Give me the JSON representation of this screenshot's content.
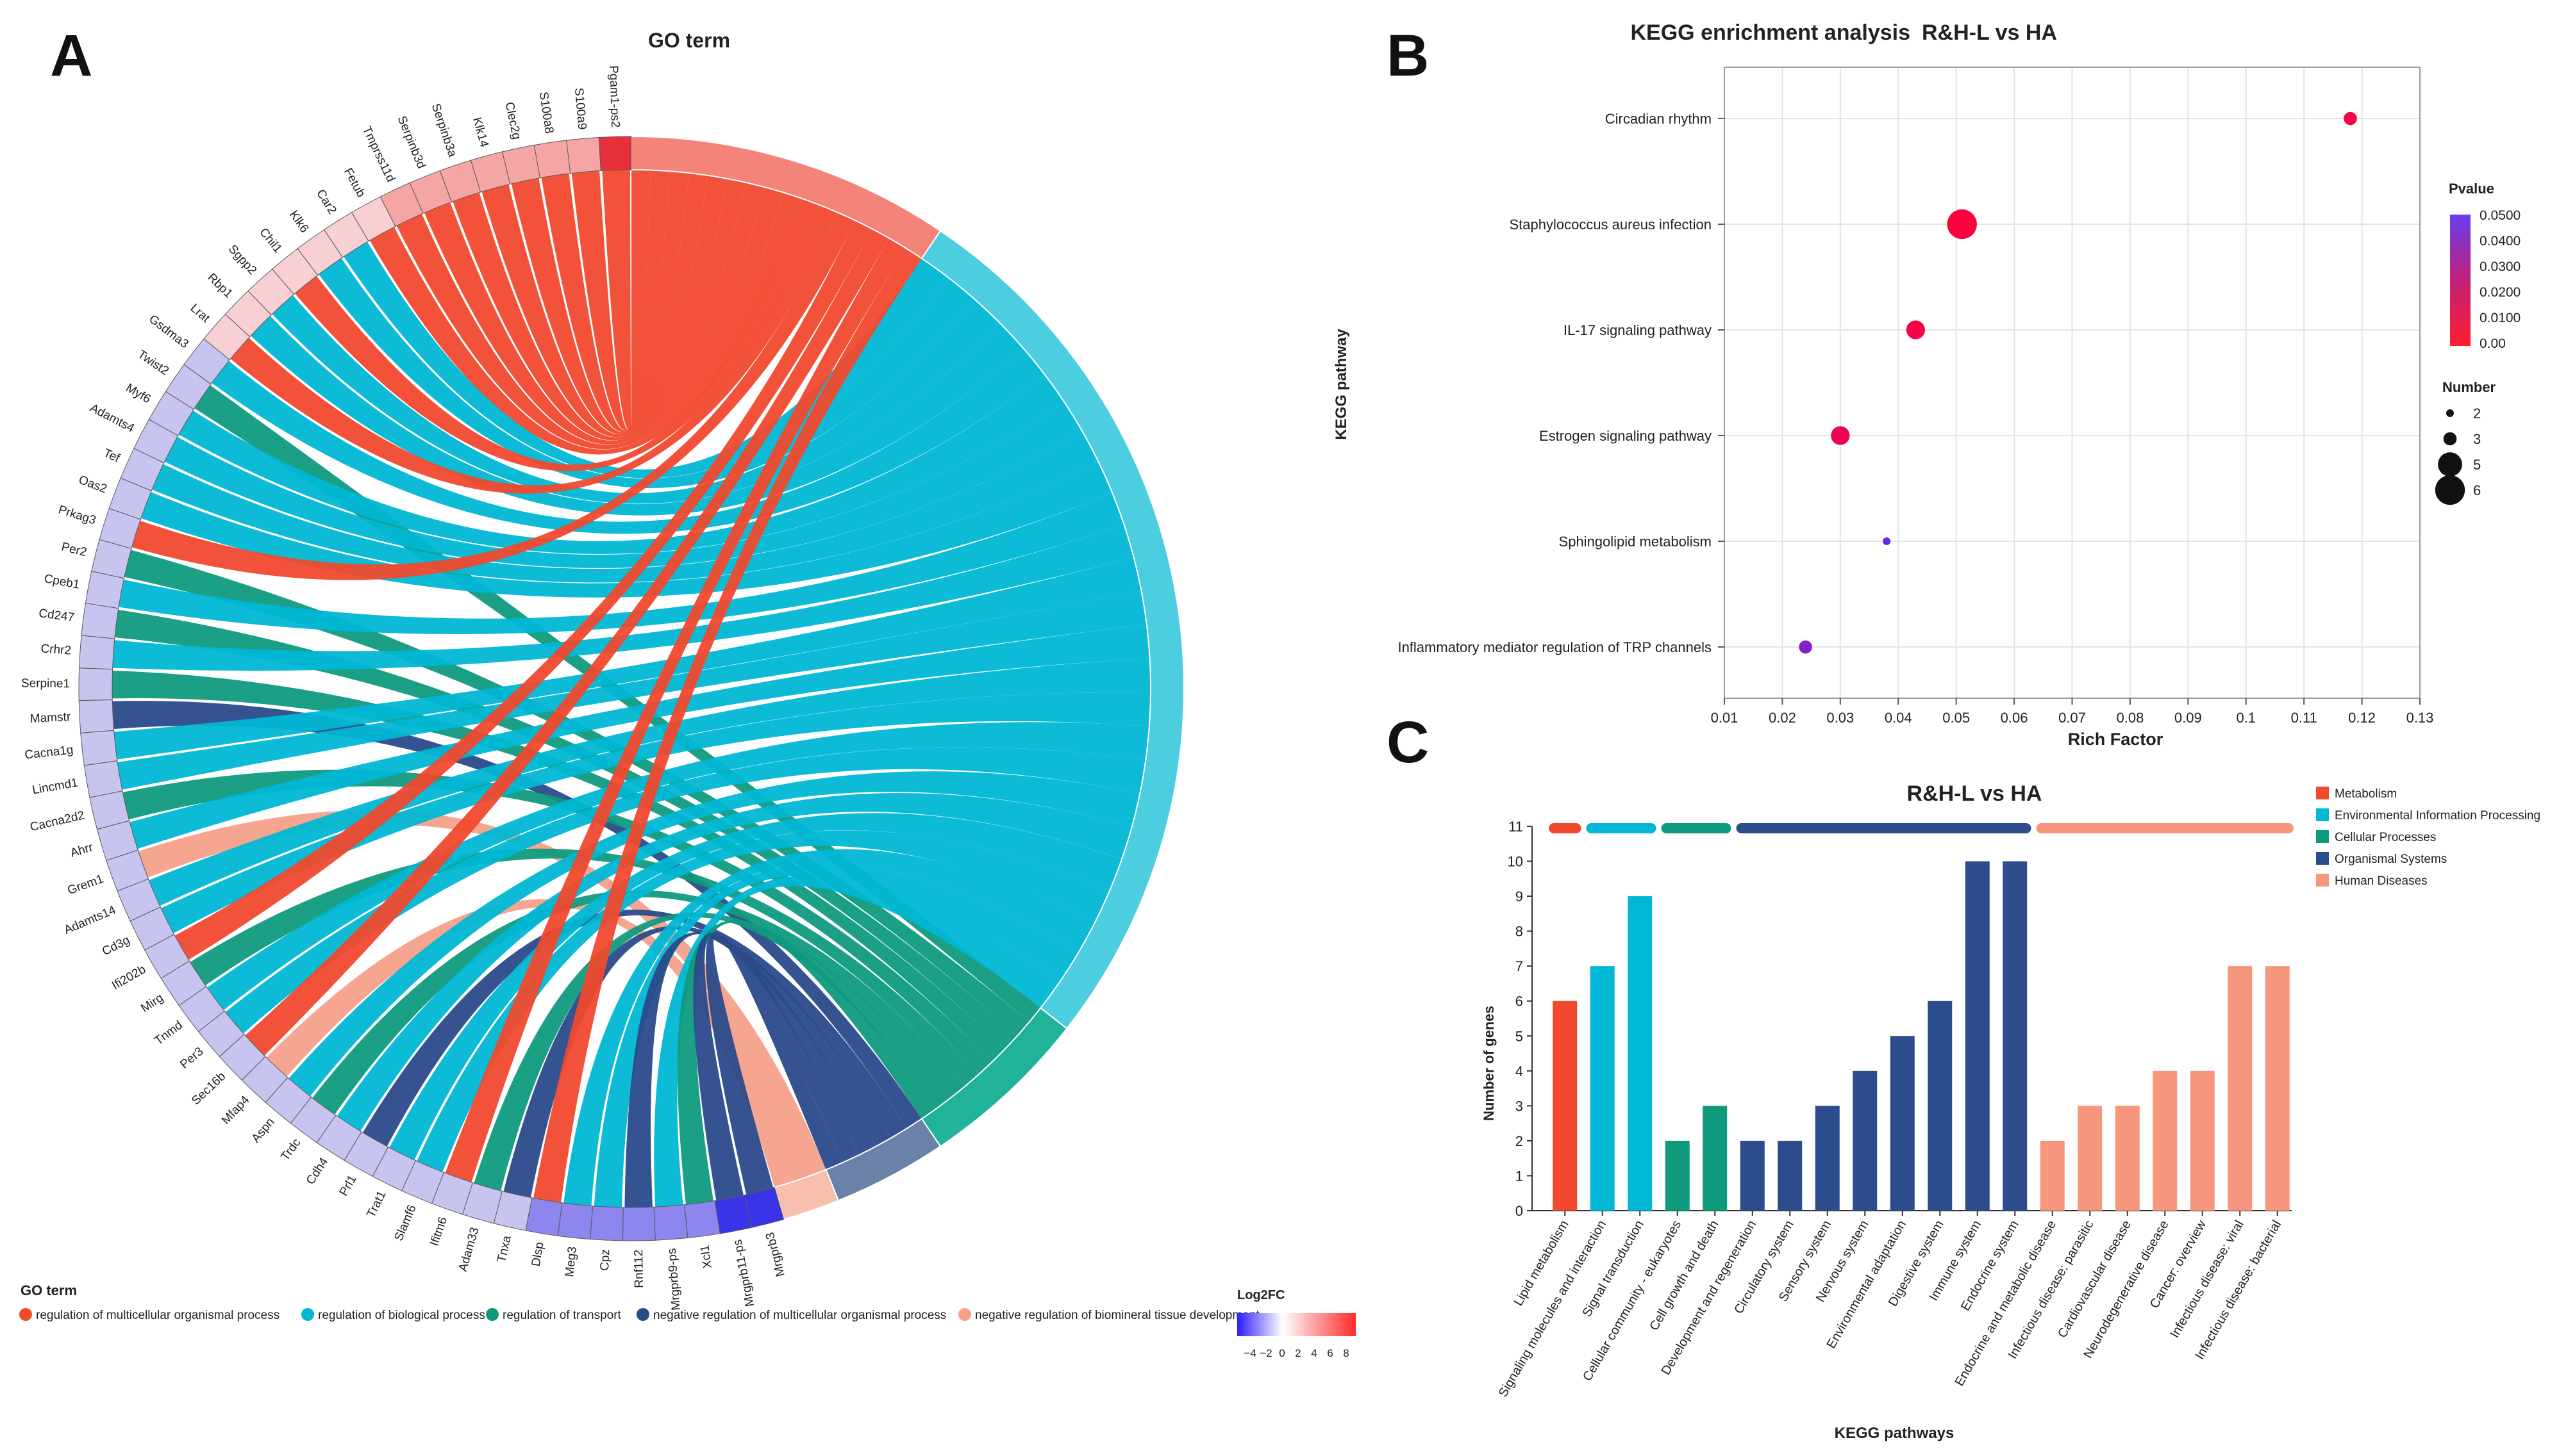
{
  "panel_labels": {
    "a": "A",
    "b": "B",
    "c": "C"
  },
  "colors": {
    "metabolism": "#f0492e",
    "environmental": "#00b7d4",
    "cellular": "#0f9a7e",
    "organismal": "#2c4c8b",
    "human": "#f6977d",
    "go_red": "#f0492e",
    "go_cyan": "#00b7d4",
    "go_green": "#0f9a7e",
    "go_navy": "#2a4a8a",
    "go_salmon": "#f6a08a"
  },
  "chart_data": [
    {
      "type": "chord",
      "title": "GO term",
      "genes": [
        "Pgam1-ps2",
        "S100a9",
        "S100a8",
        "Clec2g",
        "Klk14",
        "Serpinb3a",
        "Serpinb3d",
        "Tmprss11d",
        "Fetub",
        "Car2",
        "Klk6",
        "Chil1",
        "Sgpp2",
        "Rbp1",
        "Lrat",
        "Gsdma3",
        "Twist2",
        "Myf6",
        "Adamts4",
        "Tef",
        "Oas2",
        "Prkag3",
        "Per2",
        "Cpeb1",
        "Cd247",
        "Crhr2",
        "Serpine1",
        "Mamstr",
        "Cacna1g",
        "Lincmd1",
        "Cacna2d2",
        "Ahrr",
        "Grem1",
        "Adamts14",
        "Cd3g",
        "Ifi202b",
        "Mirg",
        "Tnmd",
        "Per3",
        "Sec16b",
        "Mfap4",
        "Aspn",
        "Trdc",
        "Cdh4",
        "Prl1",
        "Trat1",
        "Slamf6",
        "Ifitm6",
        "Adam33",
        "Tnxa",
        "Dlsp",
        "Meg3",
        "Cpz",
        "Rnf112",
        "Mrgprb9-ps",
        "Xcl1",
        "Mrgprb11-ps",
        "Mrgprb3"
      ],
      "legend_title": "GO term",
      "terms": [
        {
          "name": "regulation of multicellular organismal process",
          "color": "#f0492e"
        },
        {
          "name": "regulation of biological process",
          "color": "#00b7d4"
        },
        {
          "name": "regulation of transport",
          "color": "#0f9a7e"
        },
        {
          "name": "negative regulation of multicellular organismal process",
          "color": "#2a4a8a"
        },
        {
          "name": "negative regulation of biomineral tissue development",
          "color": "#f6a08a"
        }
      ],
      "colorbar": {
        "title": "Log2FC",
        "ticks": [
          "−4",
          "−2",
          "0",
          "2",
          "4",
          "6",
          "8"
        ],
        "range": [
          -5,
          8
        ]
      }
    },
    {
      "type": "scatter",
      "title": "KEGG enrichment analysis",
      "subtitle": "R&H-L vs HA",
      "xlabel": "Rich Factor",
      "ylabel": "KEGG pathway",
      "xlim": [
        0.01,
        0.13
      ],
      "xticks": [
        "0.01",
        "0.02",
        "0.03",
        "0.04",
        "0.05",
        "0.06",
        "0.07",
        "0.08",
        "0.09",
        "0.1",
        "0.11",
        "0.12",
        "0.13"
      ],
      "categories": [
        "Circadian rhythm",
        "Staphylococcus aureus infection",
        "IL-17 signaling pathway",
        "Estrogen signaling pathway",
        "Sphingolipid metabolism",
        "Inflammatory mediator regulation of TRP channels"
      ],
      "x": [
        0.118,
        0.051,
        0.043,
        0.03,
        0.038,
        0.024
      ],
      "number": [
        3,
        6,
        4,
        4,
        2,
        3
      ],
      "pvalue": [
        0.002,
        0.001,
        0.003,
        0.006,
        0.048,
        0.04
      ],
      "legend_pvalue": {
        "title": "Pvalue",
        "ticks": [
          "0.0500",
          "0.0400",
          "0.0300",
          "0.0200",
          "0.0100",
          "0.00"
        ]
      },
      "legend_number": {
        "title": "Number",
        "values": [
          "2",
          "3",
          "5",
          "6"
        ]
      }
    },
    {
      "type": "bar",
      "title": "R&H-L vs HA",
      "xlabel": "KEGG pathways",
      "ylabel": "Number of genes",
      "ylim": [
        0,
        11
      ],
      "yticks": [
        "0",
        "1",
        "2",
        "3",
        "4",
        "5",
        "6",
        "7",
        "8",
        "9",
        "10",
        "11"
      ],
      "categories": [
        "Lipid metabolism",
        "Signaling molecules and interaction",
        "Signal transduction",
        "Cellular community - eukaryotes",
        "Cell growth and death",
        "Development and regeneration",
        "Circulatory system",
        "Sensory system",
        "Nervous system",
        "Environmental adaptation",
        "Digestive system",
        "Immune system",
        "Endocrine system",
        "Endocrine and metabolic disease",
        "Infectious disease: parasitic",
        "Cardiovascular disease",
        "Neurodegenerative disease",
        "Cancer: overview",
        "Infectious disease: viral",
        "Infectious disease: bacterial"
      ],
      "values": [
        6,
        7,
        9,
        2,
        3,
        2,
        2,
        3,
        4,
        5,
        6,
        10,
        10,
        2,
        3,
        3,
        4,
        4,
        7,
        7
      ],
      "groups": [
        "metabolism",
        "environmental",
        "environmental",
        "cellular",
        "cellular",
        "organismal",
        "organismal",
        "organismal",
        "organismal",
        "organismal",
        "organismal",
        "organismal",
        "organismal",
        "human",
        "human",
        "human",
        "human",
        "human",
        "human",
        "human"
      ],
      "legend": [
        {
          "key": "metabolism",
          "label": "Metabolism"
        },
        {
          "key": "environmental",
          "label": "Environmental Information Processing"
        },
        {
          "key": "cellular",
          "label": "Cellular Processes"
        },
        {
          "key": "organismal",
          "label": "Organismal Systems"
        },
        {
          "key": "human",
          "label": "Human Diseases"
        }
      ]
    }
  ]
}
